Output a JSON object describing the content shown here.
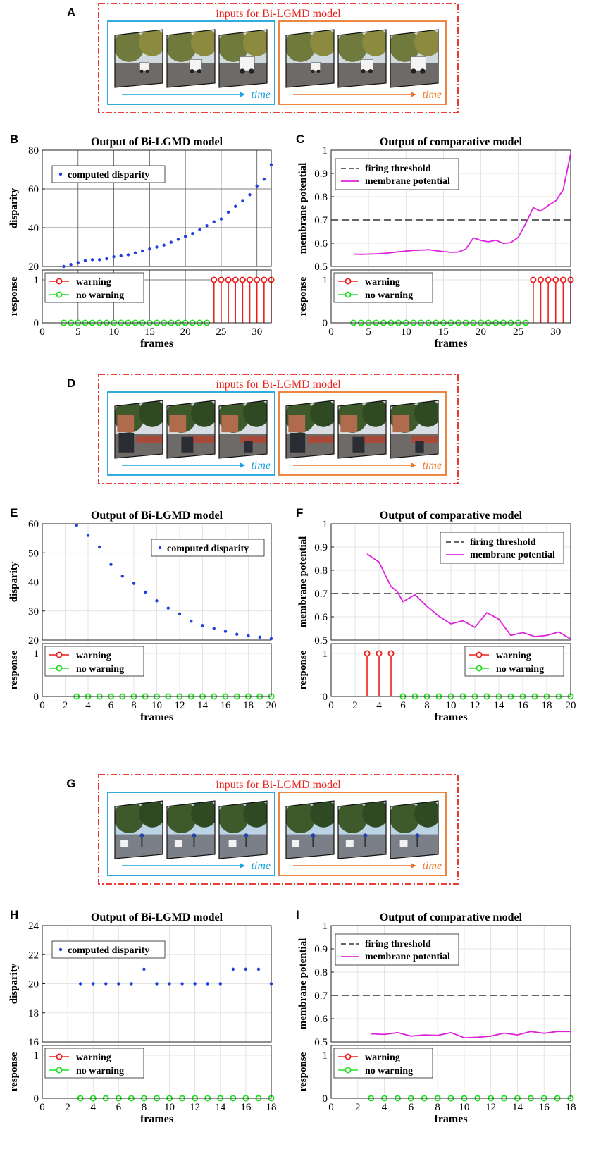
{
  "colors": {
    "dashdot_border": "#e8241d",
    "input_title": "#e8241d",
    "left_box": "#1aa3de",
    "right_box": "#e97a2d",
    "disparity_marker": "#1f3fe0",
    "membrane_line": "#dd22dd",
    "threshold_line": "#333333",
    "warning": "#ee1c1c",
    "no_warning": "#1fe01f"
  },
  "input_panels": [
    {
      "label": "A",
      "title": "inputs for Bi-LGMD model",
      "left_time_label": "time",
      "right_time_label": "time",
      "scene": "street-van"
    },
    {
      "label": "D",
      "title": "inputs for Bi-LGMD model",
      "left_time_label": "time",
      "right_time_label": "time",
      "scene": "street-car"
    },
    {
      "label": "G",
      "title": "inputs for Bi-LGMD model",
      "left_time_label": "time",
      "right_time_label": "time",
      "scene": "crossroad"
    }
  ],
  "chart_data": [
    {
      "label": "B",
      "type": "scatter",
      "title": "Output of Bi-LGMD model",
      "ylabel": "disparity",
      "xlabel": "frames",
      "xlim": [
        0,
        32
      ],
      "xticks": [
        0,
        5,
        10,
        15,
        20,
        25,
        30
      ],
      "ylim": [
        20,
        80
      ],
      "yticks": [
        20,
        40,
        60,
        80
      ],
      "grid": "dark",
      "legend": {
        "position": "top-left",
        "entries": [
          "computed disparity"
        ]
      },
      "x": [
        3,
        4,
        5,
        6,
        7,
        8,
        9,
        10,
        11,
        12,
        13,
        14,
        15,
        16,
        17,
        18,
        19,
        20,
        21,
        22,
        23,
        24,
        25,
        26,
        27,
        28,
        29,
        30,
        31,
        32
      ],
      "y": [
        20,
        21,
        22,
        23,
        23.5,
        23.5,
        24,
        25,
        25.5,
        26,
        27,
        28,
        29,
        30,
        31,
        32.5,
        34,
        35.5,
        37,
        39,
        41,
        43,
        44.5,
        48,
        51,
        54,
        57,
        61.5,
        65,
        72.5
      ],
      "response": {
        "ylabel": "response",
        "ylim": [
          0,
          1
        ],
        "yticks": [
          0,
          1
        ],
        "legend": {
          "position": "top-left",
          "warning": "warning",
          "no_warning": "no warning"
        },
        "x": [
          3,
          4,
          5,
          6,
          7,
          8,
          9,
          10,
          11,
          12,
          13,
          14,
          15,
          16,
          17,
          18,
          19,
          20,
          21,
          22,
          23,
          24,
          25,
          26,
          27,
          28,
          29,
          30,
          31,
          32
        ],
        "values": [
          0,
          0,
          0,
          0,
          0,
          0,
          0,
          0,
          0,
          0,
          0,
          0,
          0,
          0,
          0,
          0,
          0,
          0,
          0,
          0,
          0,
          1,
          1,
          1,
          1,
          1,
          1,
          1,
          1,
          1
        ]
      }
    },
    {
      "label": "C",
      "type": "line",
      "title": "Output of comparative model",
      "ylabel": "membrane potential",
      "xlabel": "frames",
      "xlim": [
        0,
        32
      ],
      "xticks": [
        0,
        5,
        10,
        15,
        20,
        25,
        30
      ],
      "ylim": [
        0.5,
        1
      ],
      "yticks": [
        0.5,
        0.6,
        0.7,
        0.8,
        0.9,
        1
      ],
      "grid": "light",
      "threshold": 0.7,
      "legend": {
        "position": "top-left",
        "entries": [
          "firing threshold",
          "membrane potential"
        ]
      },
      "x": [
        3,
        4,
        5,
        6,
        7,
        8,
        9,
        10,
        11,
        12,
        13,
        14,
        15,
        16,
        17,
        18,
        19,
        20,
        21,
        22,
        23,
        24,
        25,
        26,
        27,
        28,
        29,
        30,
        31,
        32
      ],
      "y": [
        0.553,
        0.552,
        0.553,
        0.554,
        0.556,
        0.559,
        0.563,
        0.566,
        0.569,
        0.57,
        0.572,
        0.568,
        0.564,
        0.561,
        0.562,
        0.575,
        0.623,
        0.612,
        0.606,
        0.613,
        0.599,
        0.603,
        0.625,
        0.685,
        0.753,
        0.738,
        0.762,
        0.782,
        0.83,
        0.985
      ],
      "response": {
        "ylabel": "response",
        "ylim": [
          0,
          1
        ],
        "yticks": [
          0,
          1
        ],
        "legend": {
          "position": "top-left",
          "warning": "warning",
          "no_warning": "no warning"
        },
        "x": [
          3,
          4,
          5,
          6,
          7,
          8,
          9,
          10,
          11,
          12,
          13,
          14,
          15,
          16,
          17,
          18,
          19,
          20,
          21,
          22,
          23,
          24,
          25,
          26,
          27,
          28,
          29,
          30,
          31,
          32
        ],
        "values": [
          0,
          0,
          0,
          0,
          0,
          0,
          0,
          0,
          0,
          0,
          0,
          0,
          0,
          0,
          0,
          0,
          0,
          0,
          0,
          0,
          0,
          0,
          0,
          0,
          1,
          1,
          1,
          1,
          1,
          1
        ]
      }
    },
    {
      "label": "E",
      "type": "scatter",
      "title": "Output of Bi-LGMD model",
      "ylabel": "disparity",
      "xlabel": "frames",
      "xlim": [
        0,
        20
      ],
      "xticks": [
        0,
        2,
        4,
        6,
        8,
        10,
        12,
        14,
        16,
        18,
        20
      ],
      "ylim": [
        20,
        60
      ],
      "yticks": [
        20,
        30,
        40,
        50,
        60
      ],
      "grid": "light",
      "legend": {
        "position": "top-right",
        "entries": [
          "computed disparity"
        ]
      },
      "x": [
        3,
        4,
        5,
        6,
        7,
        8,
        9,
        10,
        11,
        12,
        13,
        14,
        15,
        16,
        17,
        18,
        19,
        20
      ],
      "y": [
        59.5,
        56,
        52,
        46,
        42,
        39.5,
        36.5,
        33.5,
        31,
        29,
        26.5,
        25,
        24,
        23,
        22,
        21.5,
        21,
        20.5
      ],
      "response": {
        "ylabel": "response",
        "ylim": [
          0,
          1
        ],
        "yticks": [
          0,
          1
        ],
        "legend": {
          "position": "top-left",
          "warning": "warning",
          "no_warning": "no warning"
        },
        "x": [
          3,
          4,
          5,
          6,
          7,
          8,
          9,
          10,
          11,
          12,
          13,
          14,
          15,
          16,
          17,
          18,
          19,
          20
        ],
        "values": [
          0,
          0,
          0,
          0,
          0,
          0,
          0,
          0,
          0,
          0,
          0,
          0,
          0,
          0,
          0,
          0,
          0,
          0
        ]
      }
    },
    {
      "label": "F",
      "type": "line",
      "title": "Output of comparative model",
      "ylabel": "membrane potential",
      "xlabel": "frames",
      "xlim": [
        0,
        20
      ],
      "xticks": [
        0,
        2,
        4,
        6,
        8,
        10,
        12,
        14,
        16,
        18,
        20
      ],
      "ylim": [
        0.5,
        1
      ],
      "yticks": [
        0.5,
        0.6,
        0.7,
        0.8,
        0.9,
        1
      ],
      "grid": "light",
      "threshold": 0.7,
      "legend": {
        "position": "top-right",
        "entries": [
          "firing threshold",
          "membrane potential"
        ]
      },
      "x": [
        3,
        4,
        5,
        5.5,
        6,
        7,
        8,
        9,
        10,
        11,
        12,
        13,
        14,
        15,
        16,
        17,
        18,
        19,
        20
      ],
      "y": [
        0.87,
        0.835,
        0.73,
        0.71,
        0.665,
        0.695,
        0.645,
        0.602,
        0.57,
        0.583,
        0.555,
        0.618,
        0.59,
        0.52,
        0.532,
        0.515,
        0.52,
        0.535,
        0.505
      ],
      "response": {
        "ylabel": "response",
        "ylim": [
          0,
          1
        ],
        "yticks": [
          0,
          1
        ],
        "legend": {
          "position": "top-right",
          "warning": "warning",
          "no_warning": "no warning"
        },
        "x": [
          3,
          4,
          5,
          6,
          7,
          8,
          9,
          10,
          11,
          12,
          13,
          14,
          15,
          16,
          17,
          18,
          19,
          20
        ],
        "values": [
          1,
          1,
          1,
          0,
          0,
          0,
          0,
          0,
          0,
          0,
          0,
          0,
          0,
          0,
          0,
          0,
          0,
          0
        ]
      }
    },
    {
      "label": "H",
      "type": "scatter",
      "title": "Output of Bi-LGMD model",
      "ylabel": "disparity",
      "xlabel": "frames",
      "xlim": [
        0,
        18
      ],
      "xticks": [
        0,
        2,
        4,
        6,
        8,
        10,
        12,
        14,
        16,
        18
      ],
      "ylim": [
        16,
        24
      ],
      "yticks": [
        16,
        18,
        20,
        22,
        24
      ],
      "grid": "light",
      "legend": {
        "position": "top-left",
        "entries": [
          "computed disparity"
        ]
      },
      "x": [
        3,
        4,
        5,
        6,
        7,
        8,
        9,
        10,
        11,
        12,
        13,
        14,
        15,
        16,
        17,
        18
      ],
      "y": [
        20,
        20,
        20,
        20,
        20,
        21,
        20,
        20,
        20,
        20,
        20,
        20,
        21,
        21,
        21,
        20
      ],
      "response": {
        "ylabel": "response",
        "ylim": [
          0,
          1
        ],
        "yticks": [
          0,
          1
        ],
        "legend": {
          "position": "top-left",
          "warning": "warning",
          "no_warning": "no warning"
        },
        "x": [
          3,
          4,
          5,
          6,
          7,
          8,
          9,
          10,
          11,
          12,
          13,
          14,
          15,
          16,
          17,
          18
        ],
        "values": [
          0,
          0,
          0,
          0,
          0,
          0,
          0,
          0,
          0,
          0,
          0,
          0,
          0,
          0,
          0,
          0
        ]
      }
    },
    {
      "label": "I",
      "type": "line",
      "title": "Output of comparative model",
      "ylabel": "membrane potential",
      "xlabel": "frames",
      "xlim": [
        0,
        18
      ],
      "xticks": [
        0,
        2,
        4,
        6,
        8,
        10,
        12,
        14,
        16,
        18
      ],
      "ylim": [
        0.5,
        1
      ],
      "yticks": [
        0.5,
        0.6,
        0.7,
        0.8,
        0.9,
        1
      ],
      "grid": "light",
      "threshold": 0.7,
      "legend": {
        "position": "top-left",
        "entries": [
          "firing threshold",
          "membrane potential"
        ]
      },
      "x": [
        3,
        4,
        5,
        6,
        7,
        8,
        9,
        10,
        11,
        12,
        13,
        14,
        15,
        16,
        17,
        18
      ],
      "y": [
        0.535,
        0.532,
        0.54,
        0.525,
        0.53,
        0.528,
        0.54,
        0.518,
        0.52,
        0.525,
        0.538,
        0.53,
        0.545,
        0.537,
        0.545,
        0.545
      ],
      "response": {
        "ylabel": "response",
        "ylim": [
          0,
          1
        ],
        "yticks": [
          0,
          1
        ],
        "legend": {
          "position": "top-left",
          "warning": "warning",
          "no_warning": "no warning"
        },
        "x": [
          3,
          4,
          5,
          6,
          7,
          8,
          9,
          10,
          11,
          12,
          13,
          14,
          15,
          16,
          17,
          18
        ],
        "values": [
          0,
          0,
          0,
          0,
          0,
          0,
          0,
          0,
          0,
          0,
          0,
          0,
          0,
          0,
          0,
          0
        ]
      }
    }
  ]
}
